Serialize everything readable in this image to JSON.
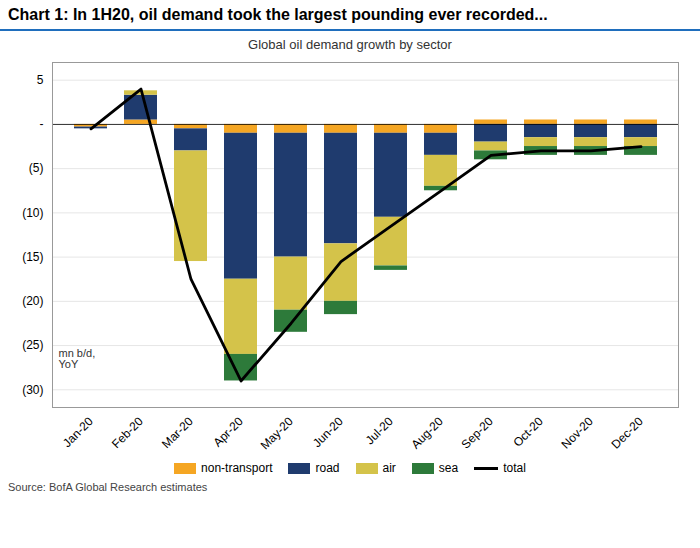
{
  "chart_data": {
    "type": "bar",
    "stacked": true,
    "title": "Chart 1: In 1H20, oil demand took the largest pounding ever recorded...",
    "subtitle": "Global oil demand growth by sector",
    "ylabel": "mn b/d,\nYoY",
    "source": "Source: BofA Global Research estimates",
    "categories": [
      "Jan-20",
      "Feb-20",
      "Mar-20",
      "Apr-20",
      "May-20",
      "Jun-20",
      "Jul-20",
      "Aug-20",
      "Sep-20",
      "Oct-20",
      "Nov-20",
      "Dec-20"
    ],
    "series": [
      {
        "name": "non-transport",
        "color": "#F5A623",
        "values": [
          -0.3,
          0.5,
          -0.5,
          -1.0,
          -1.0,
          -1.0,
          -1.0,
          -1.0,
          0.5,
          0.5,
          0.5,
          0.5
        ]
      },
      {
        "name": "road",
        "color": "#1F3B6E",
        "values": [
          -0.2,
          2.8,
          -2.5,
          -16.5,
          -14.0,
          -12.5,
          -9.5,
          -2.5,
          -2.0,
          -1.5,
          -1.5,
          -1.5
        ]
      },
      {
        "name": "air",
        "color": "#D4C34A",
        "values": [
          0.0,
          0.5,
          -12.5,
          -8.5,
          -6.0,
          -6.5,
          -5.5,
          -3.5,
          -1.0,
          -1.0,
          -1.0,
          -1.0
        ]
      },
      {
        "name": "sea",
        "color": "#2D7A3A",
        "values": [
          0.0,
          0.0,
          0.0,
          -3.0,
          -2.5,
          -1.5,
          -0.5,
          -0.5,
          -1.0,
          -1.0,
          -1.0,
          -1.0
        ]
      },
      {
        "name": "total",
        "type": "line",
        "color": "#000000",
        "values": [
          -0.5,
          4.0,
          -17.5,
          -29.0,
          -22.5,
          -15.5,
          -11.5,
          -7.5,
          -3.5,
          -3.0,
          -3.0,
          -2.5
        ]
      }
    ],
    "ylim": [
      -32,
      7
    ],
    "yticks": [
      5,
      {
        "value": 0,
        "label": "-"
      },
      {
        "value": -5,
        "label": "(5)"
      },
      {
        "value": -10,
        "label": "(10)"
      },
      {
        "value": -15,
        "label": "(15)"
      },
      {
        "value": -20,
        "label": "(20)"
      },
      {
        "value": -25,
        "label": "(25)"
      },
      {
        "value": -30,
        "label": "(30)"
      }
    ],
    "grid": true,
    "legend": "bottom"
  }
}
